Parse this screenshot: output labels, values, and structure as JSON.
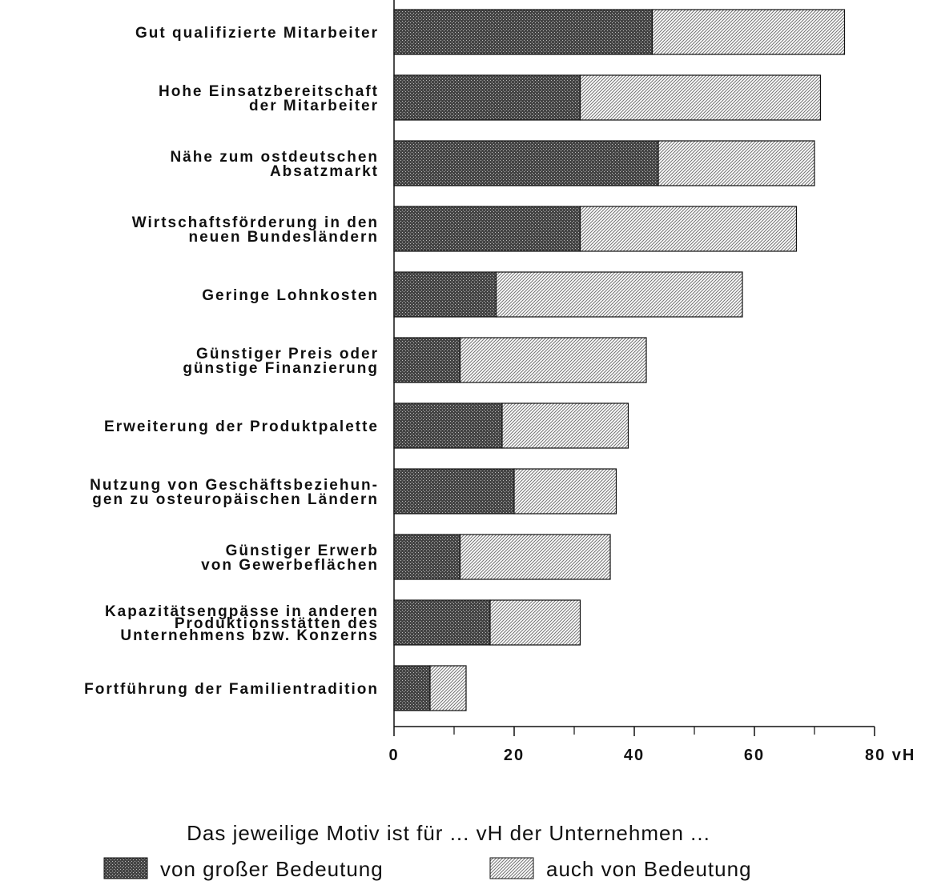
{
  "chart_data": {
    "type": "stacked-bar",
    "orientation": "horizontal",
    "categories": [
      [
        "Gut qualifizierte Mitarbeiter"
      ],
      [
        "Hohe Einsatzbereitschaft",
        "der Mitarbeiter"
      ],
      [
        "Nähe zum ostdeutschen",
        "Absatzmarkt"
      ],
      [
        "Wirtschaftsförderung in den",
        "neuen Bundesländern"
      ],
      [
        "Geringe Lohnkosten"
      ],
      [
        "Günstiger Preis oder",
        "günstige Finanzierung"
      ],
      [
        "Erweiterung der Produktpalette"
      ],
      [
        "Nutzung von Geschäftsbeziehun-",
        "gen zu osteuropäischen Ländern"
      ],
      [
        "Günstiger Erwerb",
        "von Gewerbeflächen"
      ],
      [
        "Kapazitätsengpässe in anderen",
        "Produktionsstätten des",
        "Unternehmens bzw. Konzerns"
      ],
      [
        "Fortführung der Familientradition"
      ]
    ],
    "series": [
      {
        "name": "von großer Bedeutung",
        "color": "#444444",
        "values": [
          43,
          31,
          44,
          31,
          17,
          11,
          18,
          20,
          11,
          16,
          6
        ]
      },
      {
        "name": "auch von Bedeutung",
        "color": "#777777",
        "values": [
          32,
          40,
          26,
          36,
          41,
          31,
          21,
          17,
          25,
          15,
          6
        ]
      }
    ],
    "xlim": [
      0,
      80
    ],
    "xticks": [
      0,
      20,
      40,
      60,
      {
        "value": 80,
        "label": "80 vH"
      }
    ],
    "xminor": [
      10,
      30,
      50,
      70
    ],
    "legend_title": "Das jeweilige Motiv ist für ... vH der Unternehmen ...",
    "legend": "bottom"
  }
}
